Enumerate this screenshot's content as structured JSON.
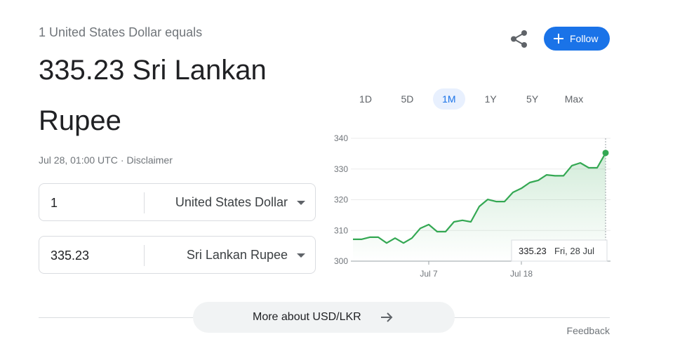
{
  "header": {
    "intro": "1 United States Dollar equals",
    "result": "335.23 Sri Lankan Rupee",
    "timestamp": "Jul 28, 01:00 UTC",
    "separator": "·",
    "disclaimer": "Disclaimer"
  },
  "follow": "Follow",
  "converter": [
    {
      "amount": "1",
      "currency": "United States Dollar"
    },
    {
      "amount": "335.23",
      "currency": "Sri Lankan Rupee"
    }
  ],
  "ranges": {
    "options": [
      "1D",
      "5D",
      "1M",
      "1Y",
      "5Y",
      "Max"
    ],
    "selected": "1M"
  },
  "chart_data": {
    "type": "line",
    "categories": [
      null,
      null,
      null,
      null,
      null,
      null,
      null,
      null,
      null,
      "Jul 7",
      null,
      null,
      null,
      null,
      null,
      null,
      null,
      null,
      null,
      null,
      "Jul 18",
      null,
      null,
      null,
      null,
      null,
      null,
      null,
      null,
      null,
      null
    ],
    "values": [
      307.1,
      307.1,
      307.8,
      307.8,
      305.9,
      307.5,
      305.9,
      307.5,
      310.7,
      311.9,
      309.6,
      309.6,
      312.8,
      313.3,
      312.8,
      317.8,
      320.1,
      319.4,
      319.4,
      322.4,
      323.7,
      325.6,
      326.3,
      328.1,
      327.8,
      327.8,
      331.1,
      332.0,
      330.4,
      330.4,
      335.23
    ],
    "color": "#34a853",
    "ylim": [
      300,
      340
    ],
    "yticks": [
      300,
      310,
      320,
      330,
      340
    ],
    "grid": true,
    "tooltip": {
      "date": "Fri, 28 Jul"
    }
  },
  "more_link": "More about USD/LKR",
  "feedback": "Feedback"
}
